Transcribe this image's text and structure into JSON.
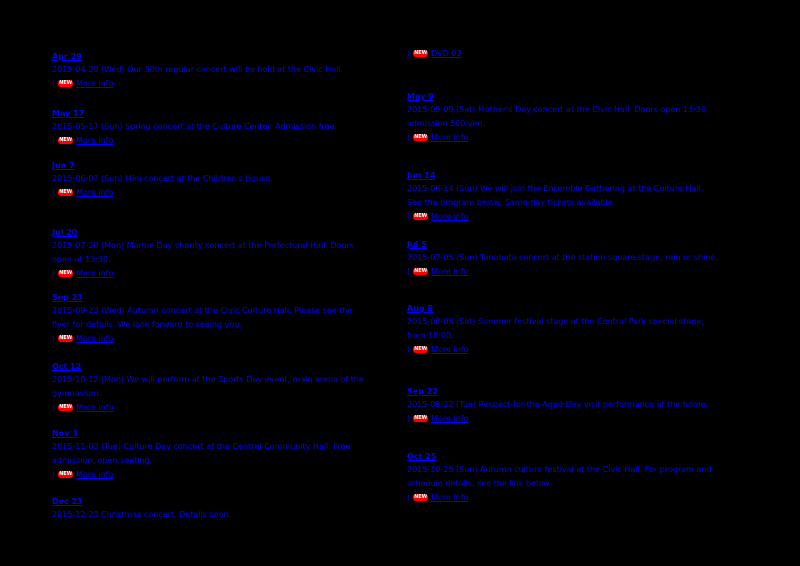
{
  "theme": {
    "background": "#000000",
    "link_color": "#0000FF",
    "badge_color": "#FF0000",
    "badge_text_color": "#FFFFFF"
  },
  "badge": {
    "label": "NEW"
  },
  "columns": [
    {
      "entries": [
        {
          "title": "Apr 29",
          "desc_lines": [
            "2015-04-29 (Wed) Our 30th regular concert will be held at the Civic Hall."
          ],
          "link": "More info",
          "badge": true
        },
        {
          "title": "May 17",
          "desc_lines": [
            "2015-05-17 (Sun) Spring concert at the Culture Center. Admission free."
          ],
          "link": "More info",
          "badge": true
        },
        {
          "title": "Jun 7",
          "desc_lines": [
            "2015-06-07 (Sun) Mini concert at the Children's House."
          ],
          "link": "More info",
          "badge": true
        },
        {
          "title": "Jul 20",
          "desc_lines": [
            "2015-07-20 (Mon) Marine Day charity concert at the Prefectural Hall. Doors",
            "open at 13:30."
          ],
          "link": "More info",
          "badge": true
        },
        {
          "title": "Sep 23",
          "desc_lines": [
            "2015-09-23 (Wed) Autumn concert at the Civic Culture Hall. Please see the",
            "flyer for details. We look forward to seeing you."
          ],
          "link": "More info",
          "badge": true
        },
        {
          "title": "Oct 12",
          "desc_lines": [
            "2015-10-12 (Mon) We will perform at the Sports Day event, main arena of the",
            "gymnasium."
          ],
          "link": "More info",
          "badge": true
        },
        {
          "title": "Nov 3",
          "desc_lines": [
            "2015-11-03 (Tue) Culture Day concert at the Central Community Hall. Free",
            "admission, open seating."
          ],
          "link": "More info",
          "badge": true
        },
        {
          "title": "Dec 23",
          "desc_lines": [
            "2015-12-23 Christmas concert. Details soon."
          ],
          "badge": false
        }
      ]
    },
    {
      "entries": [
        {
          "link": "DVD-02",
          "badge": true
        },
        {
          "title": "May 9",
          "desc_lines": [
            "2015-05-09 (Sat) Mother's Day concert at the Civic Hall. Doors open 13:30,",
            "admission 500 yen."
          ],
          "link": "More info",
          "badge": true
        },
        {
          "title": "Jun 14",
          "desc_lines": [
            "2015-06-14 (Sun) We will join the Ensemble Gathering at the Culture Hall.",
            "See the program below. Same-day tickets available."
          ],
          "link": "More info",
          "badge": true
        },
        {
          "title": "Jul 5",
          "desc_lines": [
            "2015-07-05 (Sun) Tanabata concert at the station square stage, rain or shine."
          ],
          "link": "More info",
          "badge": true
        },
        {
          "title": "Aug 8",
          "desc_lines": [
            "2015-08-08 (Sat) Summer festival stage at the Central Park special stage,",
            "from 18:00."
          ],
          "link": "More info",
          "badge": true
        },
        {
          "title": "Sep 22",
          "desc_lines": [
            "2015-09-22 (Tue) Respect-for-the-Aged Day visit performance at the home."
          ],
          "link": "More info",
          "badge": true
        },
        {
          "title": "Oct 25",
          "desc_lines": [
            "2015-10-25 (Sun) Autumn culture festival at the Civic Hall. For program and",
            "schedule details, see the link below."
          ],
          "link": "More info",
          "badge": true
        }
      ]
    }
  ]
}
